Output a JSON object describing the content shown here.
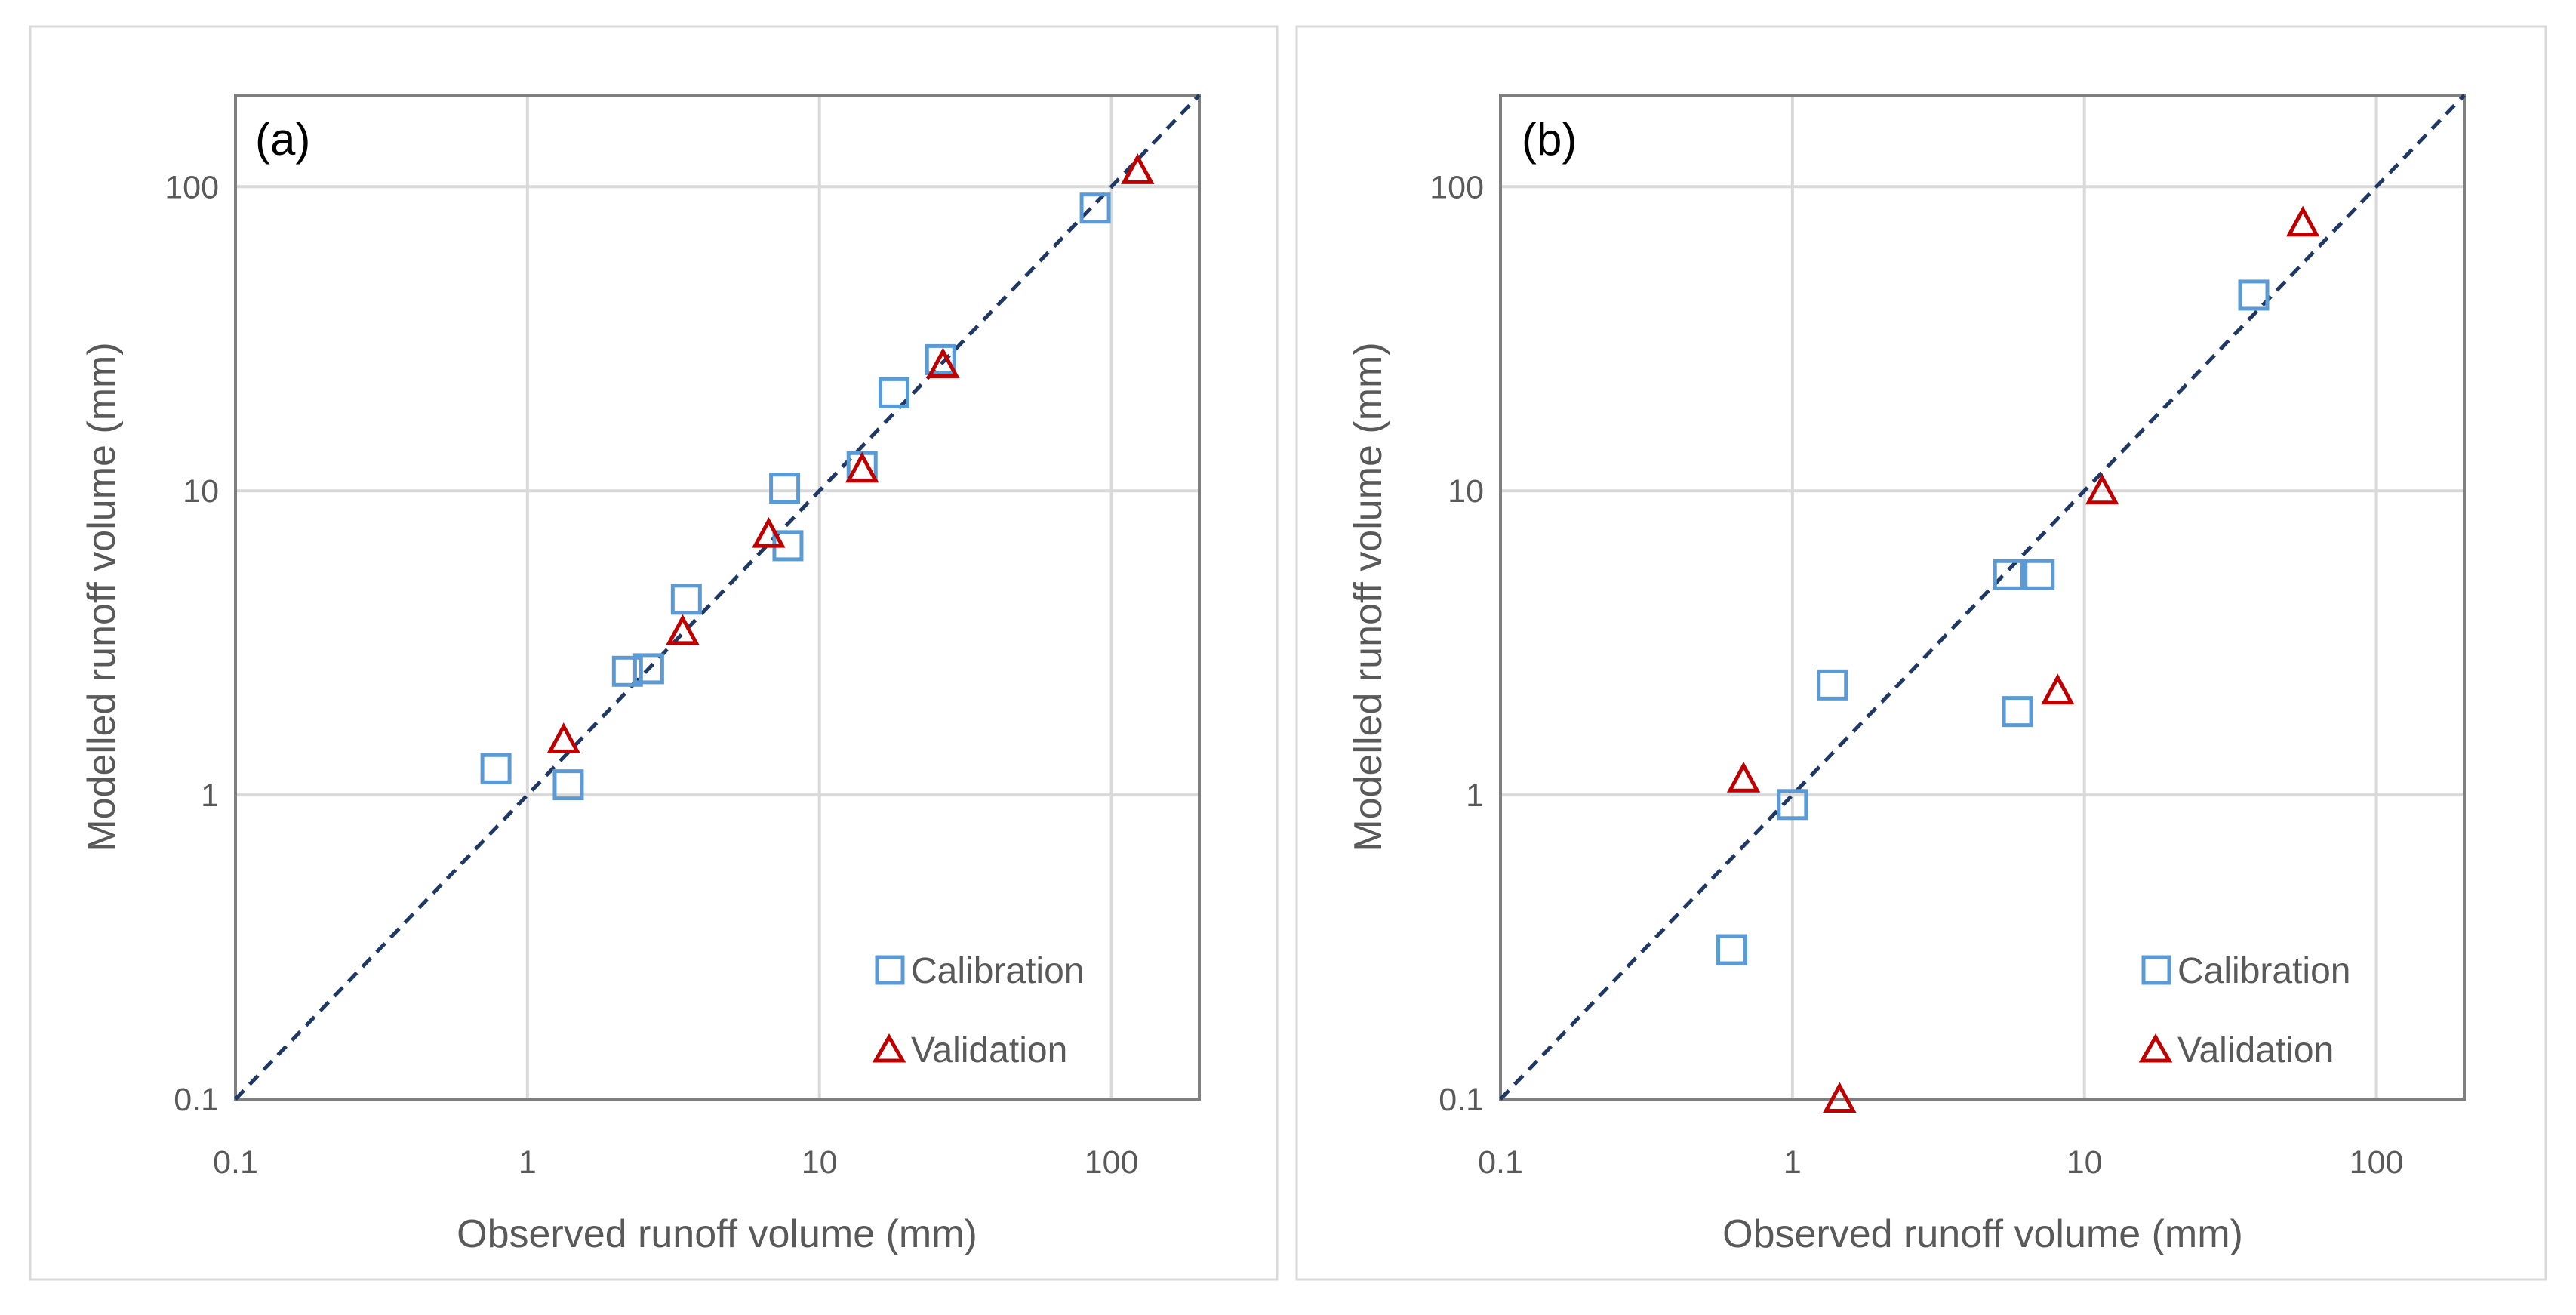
{
  "chart_data": [
    {
      "type": "scatter",
      "panel_label": "(a)",
      "xlabel": "Observed runoff volume (mm)",
      "ylabel": "Modelled runoff volume (mm)",
      "x_scale": "log",
      "y_scale": "log",
      "xlim": [
        0.1,
        200
      ],
      "ylim": [
        0.1,
        200
      ],
      "x_ticks": [
        0.1,
        1,
        10,
        100
      ],
      "y_ticks": [
        0.1,
        1,
        10,
        100
      ],
      "x_tick_labels": [
        "0.1",
        "1",
        "10",
        "100"
      ],
      "y_tick_labels": [
        "0.1",
        "1",
        "10",
        "100"
      ],
      "grid": true,
      "reference_line": "1:1",
      "legend_position": "bottom-right",
      "series": [
        {
          "name": "Calibration",
          "marker": "square",
          "color": "#5B9BD5",
          "points": [
            [
              0.78,
              1.22
            ],
            [
              1.38,
              1.08
            ],
            [
              2.2,
              2.55
            ],
            [
              2.6,
              2.6
            ],
            [
              3.5,
              4.4
            ],
            [
              7.6,
              10.2
            ],
            [
              7.8,
              6.6
            ],
            [
              14.0,
              12.0
            ],
            [
              18.0,
              21.0
            ],
            [
              26.0,
              27.0
            ],
            [
              88.0,
              85.0
            ]
          ]
        },
        {
          "name": "Validation",
          "marker": "triangle",
          "color": "#C00000",
          "points": [
            [
              1.33,
              1.52
            ],
            [
              3.4,
              3.45
            ],
            [
              6.7,
              7.2
            ],
            [
              14.0,
              11.8
            ],
            [
              26.5,
              26.0
            ],
            [
              123.0,
              113.0
            ]
          ]
        }
      ]
    },
    {
      "type": "scatter",
      "panel_label": "(b)",
      "xlabel": "Observed runoff volume (mm)",
      "ylabel": "Modelled runoff volume (mm)",
      "x_scale": "log",
      "y_scale": "log",
      "xlim": [
        0.1,
        200
      ],
      "ylim": [
        0.1,
        200
      ],
      "x_ticks": [
        0.1,
        1,
        10,
        100
      ],
      "y_ticks": [
        0.1,
        1,
        10,
        100
      ],
      "x_tick_labels": [
        "0.1",
        "1",
        "10",
        "100"
      ],
      "y_tick_labels": [
        "0.1",
        "1",
        "10",
        "100"
      ],
      "grid": true,
      "reference_line": "1:1",
      "legend_position": "bottom-right",
      "series": [
        {
          "name": "Calibration",
          "marker": "square",
          "color": "#5B9BD5",
          "points": [
            [
              0.62,
              0.31
            ],
            [
              1.0,
              0.93
            ],
            [
              1.37,
              2.3
            ],
            [
              5.5,
              5.3
            ],
            [
              7.0,
              5.3
            ],
            [
              5.9,
              1.88
            ],
            [
              38.0,
              44.0
            ]
          ]
        },
        {
          "name": "Validation",
          "marker": "triangle",
          "color": "#C00000",
          "points": [
            [
              0.68,
              1.13
            ],
            [
              1.45,
              0.1
            ],
            [
              8.1,
              2.2
            ],
            [
              11.5,
              10.0
            ],
            [
              56.0,
              76.0
            ]
          ]
        }
      ]
    }
  ]
}
